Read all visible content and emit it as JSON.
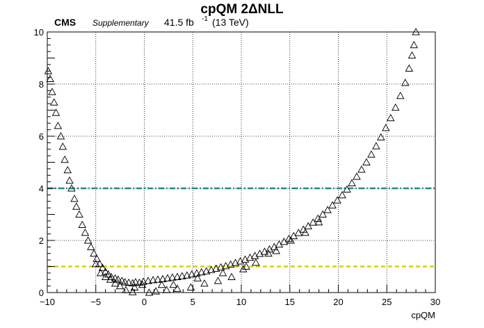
{
  "chart_data": {
    "type": "scatter",
    "title": "cpQM 2ΔNLL",
    "header": {
      "experiment": "CMS",
      "status": "Supplementary",
      "lumi": "41.5 fb",
      "lumi_exp": "-1",
      "energy": "(13 TeV)"
    },
    "xlabel": "cpQM",
    "ylabel": "",
    "xlim": [
      -10,
      30
    ],
    "ylim": [
      0,
      10
    ],
    "grid": true,
    "x_ticks": [
      -10,
      -5,
      0,
      5,
      10,
      15,
      20,
      25,
      30
    ],
    "x_tick_labels": [
      "−10",
      "−5",
      "0",
      "5",
      "10",
      "15",
      "20",
      "25",
      "30"
    ],
    "y_ticks": [
      0,
      2,
      4,
      6,
      8,
      10
    ],
    "y_tick_labels": [
      "0",
      "2",
      "4",
      "6",
      "8",
      "10"
    ],
    "reference_lines": [
      {
        "y": 4,
        "color": "#1f8a8a",
        "style": "dash-dot"
      },
      {
        "y": 1,
        "color": "#d4d400",
        "style": "dashed"
      }
    ],
    "marker": "open-triangle",
    "series": [
      {
        "points": [
          [
            -9.9,
            8.5
          ],
          [
            -9.7,
            8.2
          ],
          [
            -9.5,
            7.7
          ],
          [
            -9.3,
            7.3
          ],
          [
            -9.1,
            6.9
          ],
          [
            -8.9,
            6.4
          ],
          [
            -8.6,
            6.0
          ],
          [
            -8.4,
            5.6
          ],
          [
            -8.2,
            5.1
          ],
          [
            -7.9,
            4.7
          ],
          [
            -7.7,
            4.3
          ],
          [
            -7.5,
            4.0
          ],
          [
            -7.2,
            3.6
          ],
          [
            -7.0,
            3.3
          ],
          [
            -6.7,
            3.0
          ],
          [
            -6.4,
            2.6
          ],
          [
            -6.1,
            2.3
          ],
          [
            -5.8,
            2.0
          ],
          [
            -5.5,
            1.75
          ],
          [
            -5.2,
            1.5
          ],
          [
            -4.9,
            1.3
          ],
          [
            -4.6,
            1.1
          ],
          [
            -4.3,
            0.95
          ],
          [
            -4.0,
            0.8
          ],
          [
            -3.7,
            0.7
          ],
          [
            -3.4,
            0.6
          ],
          [
            -3.0,
            0.55
          ],
          [
            -2.7,
            0.5
          ],
          [
            -2.3,
            0.45
          ],
          [
            -2.0,
            0.4
          ],
          [
            -1.6,
            0.38
          ],
          [
            -1.2,
            0.36
          ],
          [
            -0.9,
            0.4
          ],
          [
            -0.5,
            0.38
          ],
          [
            -0.1,
            0.42
          ],
          [
            0.4,
            0.45
          ],
          [
            0.9,
            0.48
          ],
          [
            1.4,
            0.5
          ],
          [
            1.9,
            0.52
          ],
          [
            2.4,
            0.55
          ],
          [
            2.9,
            0.58
          ],
          [
            3.4,
            0.6
          ],
          [
            3.9,
            0.63
          ],
          [
            4.4,
            0.66
          ],
          [
            4.9,
            0.7
          ],
          [
            5.4,
            0.74
          ],
          [
            5.9,
            0.78
          ],
          [
            6.4,
            0.82
          ],
          [
            6.9,
            0.87
          ],
          [
            7.4,
            0.92
          ],
          [
            7.9,
            0.97
          ],
          [
            8.4,
            1.02
          ],
          [
            8.9,
            1.08
          ],
          [
            9.4,
            1.14
          ],
          [
            9.9,
            1.2
          ],
          [
            10.4,
            1.27
          ],
          [
            10.9,
            1.34
          ],
          [
            11.4,
            1.41
          ],
          [
            11.9,
            1.49
          ],
          [
            12.4,
            1.57
          ],
          [
            12.9,
            1.66
          ],
          [
            13.4,
            1.75
          ],
          [
            13.9,
            1.85
          ],
          [
            14.4,
            1.95
          ],
          [
            14.9,
            2.06
          ],
          [
            15.4,
            2.17
          ],
          [
            15.9,
            2.29
          ],
          [
            16.4,
            2.42
          ],
          [
            16.9,
            2.55
          ],
          [
            17.4,
            2.69
          ],
          [
            17.9,
            2.84
          ],
          [
            18.4,
            3.0
          ],
          [
            18.9,
            3.17
          ],
          [
            19.4,
            3.35
          ],
          [
            19.9,
            3.54
          ],
          [
            20.4,
            3.74
          ],
          [
            20.9,
            3.96
          ],
          [
            21.4,
            4.2
          ],
          [
            21.9,
            4.45
          ],
          [
            22.4,
            4.72
          ],
          [
            22.9,
            5.0
          ],
          [
            23.4,
            5.3
          ],
          [
            23.9,
            5.62
          ],
          [
            24.4,
            5.96
          ],
          [
            24.9,
            6.32
          ],
          [
            25.4,
            6.7
          ],
          [
            25.9,
            7.1
          ],
          [
            26.4,
            7.55
          ],
          [
            26.9,
            8.05
          ],
          [
            27.3,
            8.6
          ],
          [
            27.6,
            9.1
          ],
          [
            27.8,
            9.5
          ],
          [
            28.0,
            10.0
          ],
          [
            -5.0,
            1.1
          ],
          [
            -4.5,
            0.75
          ],
          [
            -4.0,
            0.6
          ],
          [
            -3.5,
            0.5
          ],
          [
            -3.0,
            0.35
          ],
          [
            -2.5,
            0.25
          ],
          [
            -1.9,
            0.1
          ],
          [
            -1.2,
            0.02
          ],
          [
            -0.2,
            0.3
          ],
          [
            0.5,
            0.0
          ],
          [
            1.2,
            0.05
          ],
          [
            2.3,
            0.1
          ],
          [
            3.4,
            0.15
          ],
          [
            4.8,
            0.2
          ],
          [
            6.2,
            0.35
          ],
          [
            7.6,
            0.45
          ],
          [
            9.0,
            0.6
          ],
          [
            10.2,
            0.9
          ],
          [
            11.5,
            1.15
          ],
          [
            12.8,
            1.5
          ],
          [
            -1.0,
            0.2
          ],
          [
            1.8,
            0.3
          ],
          [
            3.0,
            0.3
          ],
          [
            5.5,
            0.55
          ],
          [
            8.1,
            0.75
          ],
          [
            10.5,
            1.0
          ],
          [
            13.6,
            1.6
          ],
          [
            15.1,
            2.0
          ],
          [
            16.6,
            2.3
          ],
          [
            18.0,
            2.7
          ]
        ]
      }
    ]
  }
}
